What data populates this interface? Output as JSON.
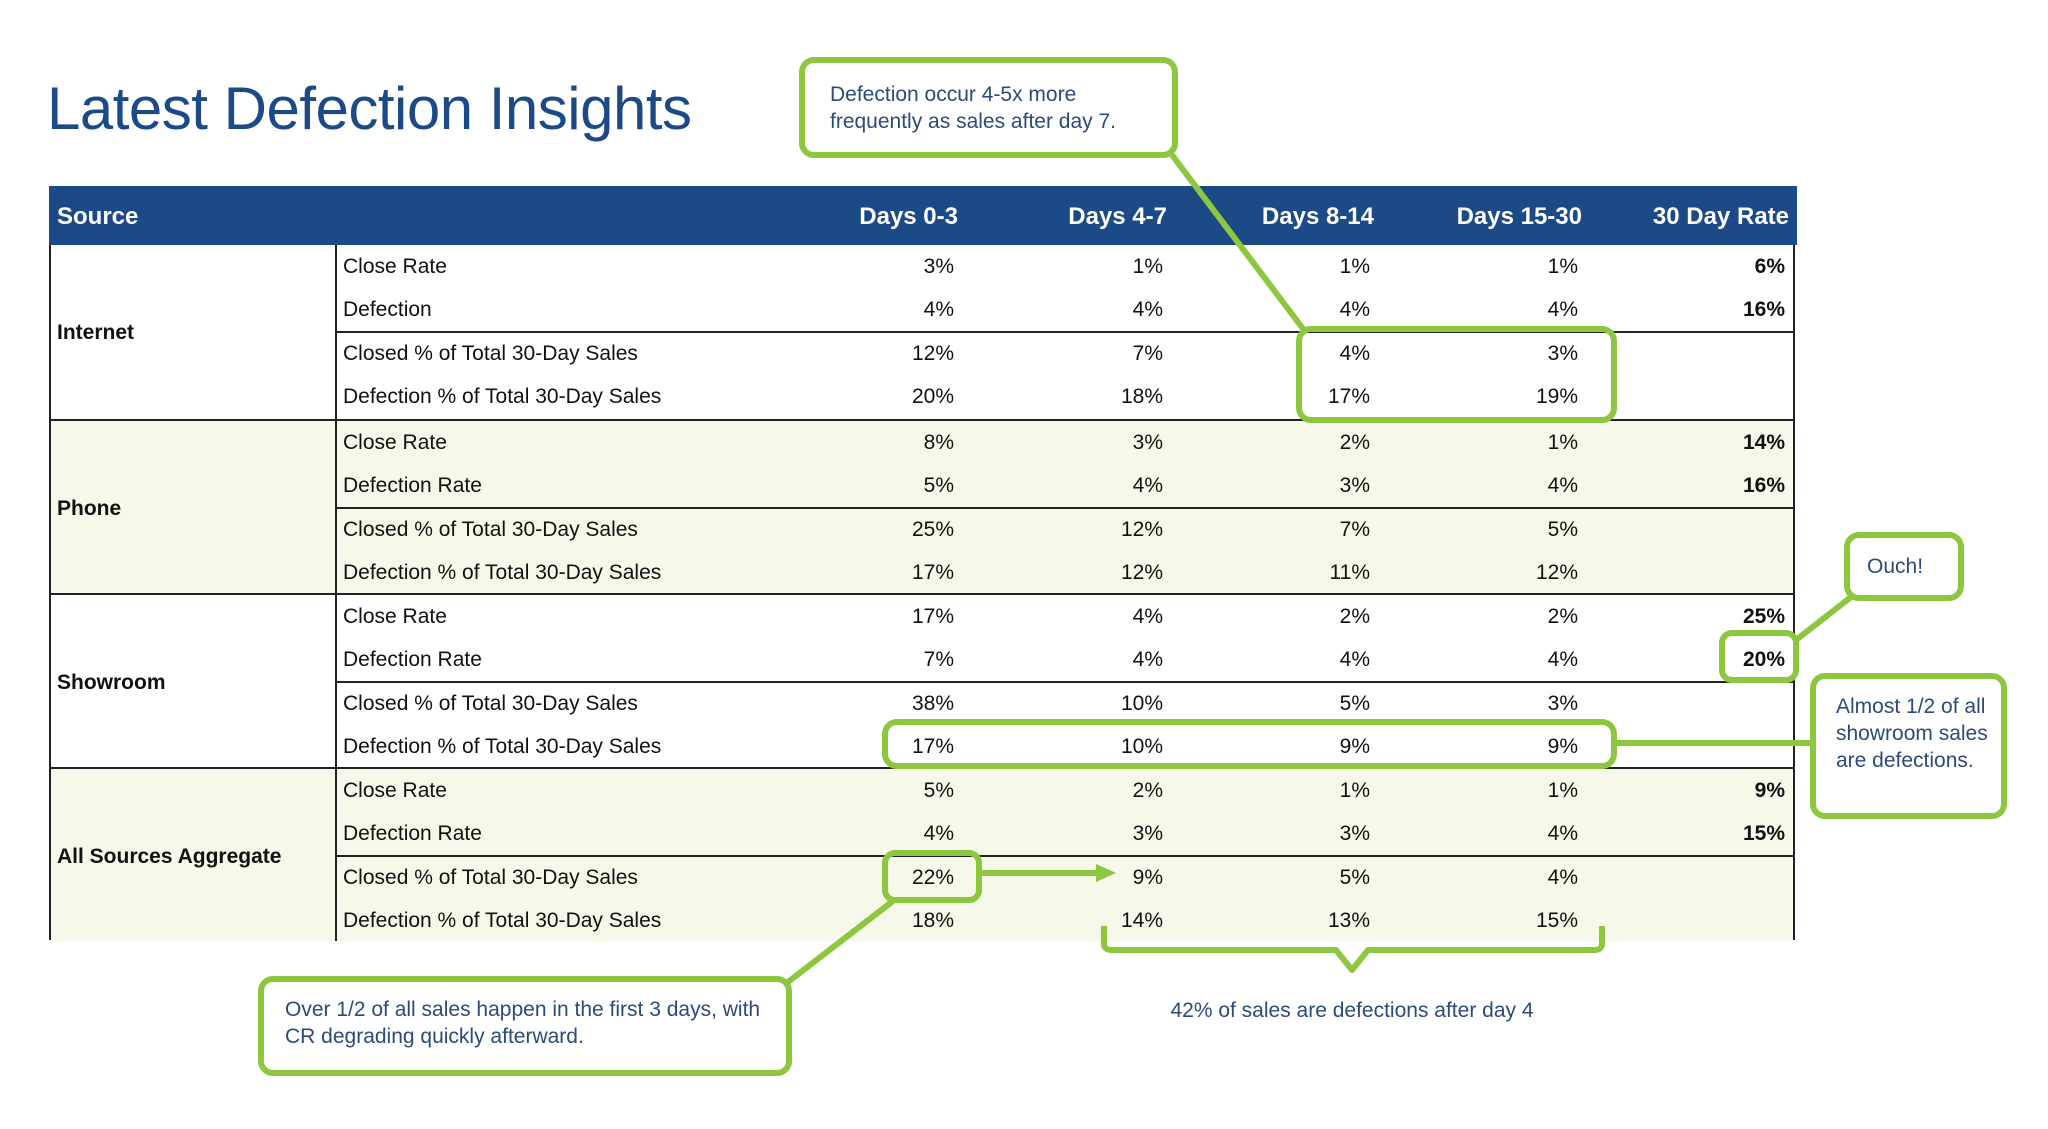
{
  "title": "Latest Defection Insights",
  "colors": {
    "header": "#1b4a86",
    "highlight": "#8dc63f",
    "shade": "#f6f8ea",
    "callout_text": "#2c4a7a"
  },
  "columns": [
    "Source",
    "Days 0-3",
    "Days 4-7",
    "Days 8-14",
    "Days 15-30",
    "30 Day Rate"
  ],
  "groups": [
    {
      "source": "Internet",
      "shaded": false,
      "rows": [
        {
          "label": "Close Rate",
          "values": [
            "3%",
            "1%",
            "1%",
            "1%"
          ],
          "rate": "6%"
        },
        {
          "label": "Defection",
          "values": [
            "4%",
            "4%",
            "4%",
            "4%"
          ],
          "rate": "16%"
        },
        {
          "label": "Closed % of Total 30-Day Sales",
          "values": [
            "12%",
            "7%",
            "4%",
            "3%"
          ],
          "rate": ""
        },
        {
          "label": "Defection % of Total 30-Day Sales",
          "values": [
            "20%",
            "18%",
            "17%",
            "19%"
          ],
          "rate": ""
        }
      ]
    },
    {
      "source": "Phone",
      "shaded": true,
      "rows": [
        {
          "label": "Close Rate",
          "values": [
            "8%",
            "3%",
            "2%",
            "1%"
          ],
          "rate": "14%"
        },
        {
          "label": "Defection Rate",
          "values": [
            "5%",
            "4%",
            "3%",
            "4%"
          ],
          "rate": "16%"
        },
        {
          "label": "Closed % of Total 30-Day Sales",
          "values": [
            "25%",
            "12%",
            "7%",
            "5%"
          ],
          "rate": ""
        },
        {
          "label": "Defection % of Total 30-Day Sales",
          "values": [
            "17%",
            "12%",
            "11%",
            "12%"
          ],
          "rate": ""
        }
      ]
    },
    {
      "source": "Showroom",
      "shaded": false,
      "rows": [
        {
          "label": "Close Rate",
          "values": [
            "17%",
            "4%",
            "2%",
            "2%"
          ],
          "rate": "25%"
        },
        {
          "label": "Defection Rate",
          "values": [
            "7%",
            "4%",
            "4%",
            "4%"
          ],
          "rate": "20%"
        },
        {
          "label": "Closed % of Total 30-Day Sales",
          "values": [
            "38%",
            "10%",
            "5%",
            "3%"
          ],
          "rate": ""
        },
        {
          "label": "Defection % of Total 30-Day Sales",
          "values": [
            "17%",
            "10%",
            "9%",
            "9%"
          ],
          "rate": ""
        }
      ]
    },
    {
      "source": "All Sources Aggregate",
      "shaded": true,
      "rows": [
        {
          "label": "Close Rate",
          "values": [
            "5%",
            "2%",
            "1%",
            "1%"
          ],
          "rate": "9%"
        },
        {
          "label": "Defection Rate",
          "values": [
            "4%",
            "3%",
            "3%",
            "4%"
          ],
          "rate": "15%"
        },
        {
          "label": "Closed % of Total 30-Day Sales",
          "values": [
            "22%",
            "9%",
            "5%",
            "4%"
          ],
          "rate": ""
        },
        {
          "label": "Defection % of Total 30-Day Sales",
          "values": [
            "18%",
            "14%",
            "13%",
            "15%"
          ],
          "rate": ""
        }
      ]
    }
  ],
  "callouts": {
    "defection_frequency": "Defection occur 4-5x more frequently as sales after day 7.",
    "ouch": "Ouch!",
    "showroom": "Almost 1/2 of all showroom sales are defections.",
    "first_days": "Over 1/2 of all sales happen in the first 3 days, with CR degrading quickly afterward.",
    "after_day4": "42% of sales are defections after day 4"
  }
}
